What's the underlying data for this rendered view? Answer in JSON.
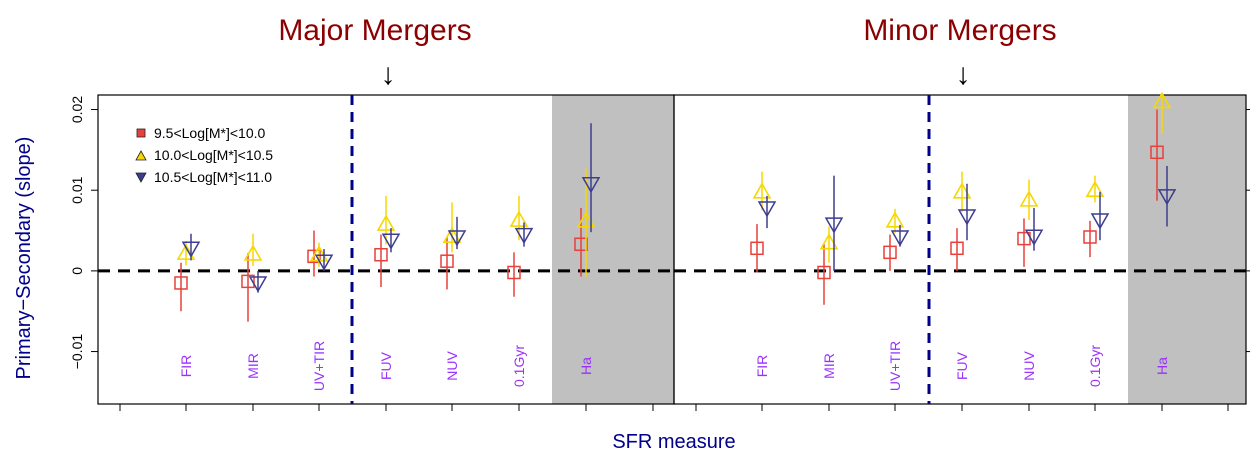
{
  "chart_data": [
    {
      "type": "scatter",
      "title": "Major Mergers",
      "categories": [
        "FIR",
        "MIR",
        "UV+TIR",
        "FUV",
        "NUV",
        "0.1Gyr",
        "Ha"
      ],
      "series": [
        {
          "name": "9.5<Log[M*]<10.0",
          "color": "#e8403a",
          "marker": "square",
          "values": [
            -0.0015,
            -0.0013,
            0.0018,
            0.002,
            0.0012,
            -0.0002,
            0.0033
          ],
          "err_low": [
            0.0035,
            0.005,
            0.0025,
            0.004,
            0.0035,
            0.003,
            0.004
          ],
          "err_high": [
            0.0025,
            0.0035,
            0.0032,
            0.0025,
            0.003,
            0.0025,
            0.0045
          ]
        },
        {
          "name": "10.0<Log[M*]<10.5",
          "color": "#f5d800",
          "marker": "triangle-up",
          "values": [
            0.0022,
            0.0021,
            0.002,
            0.0058,
            0.0043,
            0.0063,
            0.0062
          ],
          "err_low": [
            0.0015,
            0.0015,
            0.0015,
            0.0025,
            0.002,
            0.0025,
            0.007
          ],
          "err_high": [
            0.0015,
            0.0025,
            0.0015,
            0.0035,
            0.0042,
            0.003,
            0.0065
          ]
        },
        {
          "name": "10.5<Log[M*]<11.0",
          "color": "#3d3d8f",
          "marker": "triangle-down",
          "values": [
            0.0028,
            -0.0015,
            0.0012,
            0.0038,
            0.0042,
            0.0045,
            0.0108
          ],
          "err_low": [
            0.0015,
            0.0012,
            0.0012,
            0.0015,
            0.0015,
            0.0015,
            0.006
          ],
          "err_high": [
            0.0018,
            0.0015,
            0.0015,
            0.0015,
            0.0025,
            0.0015,
            0.0075
          ]
        }
      ],
      "annotation": "↓",
      "ylim": [
        -0.0165,
        0.0218
      ],
      "yticks": [
        -0.01,
        0,
        0.01,
        0.02
      ],
      "ytick_labels": [
        "−0.01",
        "0",
        "0.01",
        "0.02"
      ],
      "divider_after_index": 2,
      "shaded_category": "Ha",
      "reference_line": 0,
      "legend_position": "top-left"
    },
    {
      "type": "scatter",
      "title": "Minor Mergers",
      "categories": [
        "FIR",
        "MIR",
        "UV+TIR",
        "FUV",
        "NUV",
        "0.1Gyr",
        "Ha"
      ],
      "series": [
        {
          "name": "9.5<Log[M*]<10.0",
          "color": "#e8403a",
          "marker": "square",
          "values": [
            0.0028,
            -0.0002,
            0.0023,
            0.0028,
            0.004,
            0.0042,
            0.0147
          ],
          "err_low": [
            0.003,
            0.004,
            0.0023,
            0.0028,
            0.0035,
            0.0025,
            0.006
          ],
          "err_high": [
            0.003,
            0.0035,
            0.0022,
            0.0025,
            0.0025,
            0.002,
            0.0053
          ]
        },
        {
          "name": "10.0<Log[M*]<10.5",
          "color": "#f5d800",
          "marker": "triangle-up",
          "values": [
            0.0098,
            0.0035,
            0.0062,
            0.0098,
            0.0088,
            0.01,
            0.021
          ],
          "err_low": [
            0.0023,
            0.0025,
            0.0015,
            0.0025,
            0.0025,
            0.0015,
            0.004
          ],
          "err_high": [
            0.0025,
            0.002,
            0.0015,
            0.0025,
            0.0025,
            0.0018,
            0.002
          ]
        },
        {
          "name": "10.5<Log[M*]<11.0",
          "color": "#3d3d8f",
          "marker": "triangle-down",
          "values": [
            0.0078,
            0.0058,
            0.0042,
            0.0068,
            0.0043,
            0.0063,
            0.0093
          ],
          "err_low": [
            0.0025,
            0.0058,
            0.0012,
            0.003,
            0.0018,
            0.0025,
            0.0038
          ],
          "err_high": [
            0.0015,
            0.006,
            0.0015,
            0.004,
            0.0035,
            0.0035,
            0.0037
          ]
        }
      ],
      "annotation": "↓",
      "ylim": [
        -0.0165,
        0.0218
      ],
      "divider_after_index": 2,
      "shaded_category": "Ha",
      "reference_line": 0
    }
  ],
  "ylabel": "Primary−Secondary (slope)",
  "xlabel": "SFR measure",
  "colors": {
    "panel_title": "#8b0000",
    "axis_title": "#00008b",
    "category_label": "#9b30ff",
    "divider": "#00008b",
    "shade": "#c0c0c0"
  }
}
